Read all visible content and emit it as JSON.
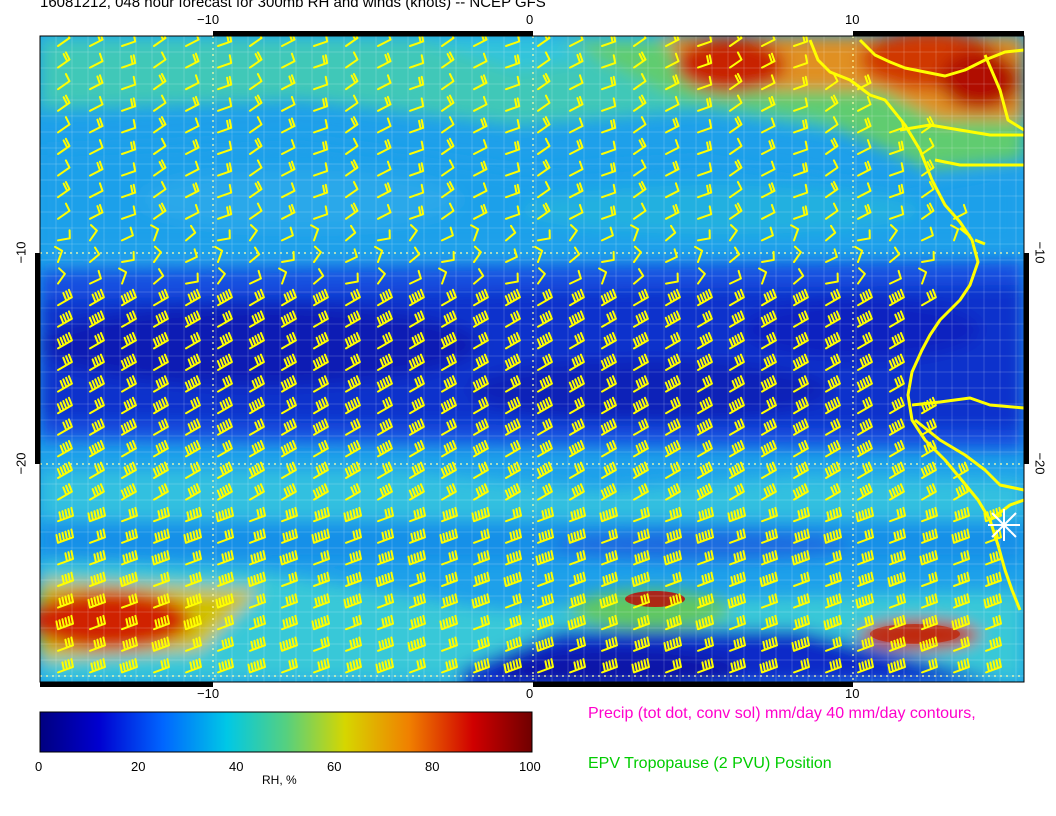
{
  "title": "16081212, 048 hour forecast for 300mb RH and winds (knots) -- NCEP GFS",
  "map": {
    "lon_ticks": [
      "−10",
      "0",
      "10"
    ],
    "lat_ticks": [
      "−10",
      "−20"
    ],
    "barb_color": "#ffff00",
    "coast_color": "#ffff00"
  },
  "colorbar": {
    "label": "RH, %",
    "ticks": [
      "0",
      "20",
      "40",
      "60",
      "80",
      "100"
    ]
  },
  "notes": {
    "precip": "Precip (tot dot, conv sol) mm/day 40 mm/day contours,",
    "epv": "EPV Tropopause (2 PVU) Position"
  },
  "colors": {
    "precip_note": "#ff00cc",
    "epv_note": "#00cc00"
  }
}
